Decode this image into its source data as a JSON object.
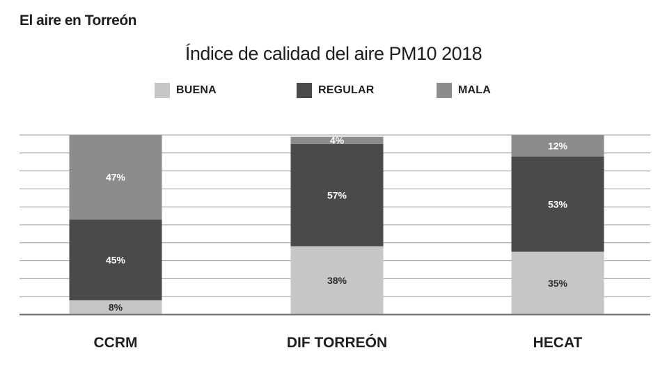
{
  "header": {
    "section_title": "El aire en Torreón"
  },
  "chart_data": {
    "type": "bar",
    "stacked": true,
    "title": "Índice de calidad del aire PM10  2018",
    "categories": [
      "CCRM",
      "DIF TORREÓN",
      "HECAT"
    ],
    "series": [
      {
        "name": "BUENA",
        "color": "#c6c6c6",
        "label_color": "#2b2b2b",
        "values": [
          8,
          38,
          35
        ]
      },
      {
        "name": "REGULAR",
        "color": "#4a4a4a",
        "label_color": "#ffffff",
        "values": [
          45,
          57,
          53
        ]
      },
      {
        "name": "MALA",
        "color": "#8c8c8c",
        "label_color": "#ffffff",
        "values": [
          47,
          4,
          12
        ]
      }
    ],
    "data_labels": [
      [
        "8%",
        "38%",
        "35%"
      ],
      [
        "45%",
        "57%",
        "53%"
      ],
      [
        "47%",
        "4%",
        "12%"
      ]
    ],
    "ylim": [
      0,
      100
    ],
    "grid": true,
    "legend_position": "top",
    "xlabel": "",
    "ylabel": ""
  }
}
